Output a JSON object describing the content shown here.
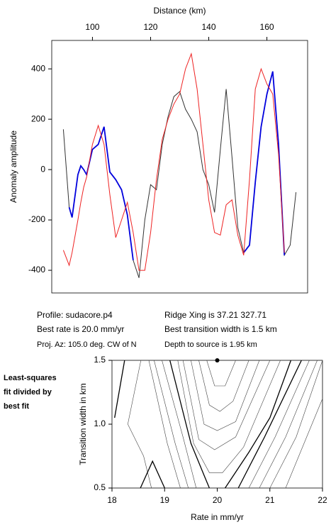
{
  "chart_data": [
    {
      "type": "line",
      "xlabel": "Distance (km)",
      "ylabel": "Anomaly amplitude",
      "xlim": [
        86,
        174
      ],
      "ylim": [
        -490,
        513
      ],
      "xticks": [
        100,
        120,
        140,
        160
      ],
      "yticks": [
        -400,
        -200,
        0,
        200,
        400
      ],
      "x": [
        90,
        92,
        93,
        95,
        96,
        97,
        98,
        100,
        102,
        104,
        106,
        108,
        110,
        112,
        114,
        116,
        118,
        120,
        122,
        124,
        126,
        128,
        130,
        132,
        134,
        136,
        138,
        140,
        142,
        144,
        146,
        148,
        150,
        152,
        154,
        156,
        158,
        160,
        162,
        164,
        166,
        168,
        170
      ],
      "series": [
        {
          "color": "#333333",
          "values": [
            160,
            -150,
            -190,
            -20,
            15,
            0,
            -20,
            80,
            100,
            170,
            -10,
            -40,
            -80,
            -180,
            -360,
            -430,
            -200,
            -60,
            -80,
            100,
            210,
            290,
            310,
            240,
            200,
            150,
            0,
            -60,
            -170,
            80,
            320,
            50,
            -230,
            -330,
            -300,
            -50,
            170,
            300,
            390,
            100,
            -340,
            -300,
            -90
          ]
        },
        {
          "color": "#0000dd",
          "values": [
            null,
            -150,
            -190,
            -20,
            15,
            0,
            -20,
            80,
            100,
            170,
            -10,
            -40,
            -80,
            -180,
            -360,
            null,
            null,
            null,
            null,
            null,
            null,
            null,
            null,
            null,
            null,
            null,
            null,
            null,
            null,
            null,
            null,
            null,
            null,
            -330,
            -300,
            -50,
            170,
            300,
            390,
            100,
            -340,
            null,
            null
          ]
        },
        {
          "color": "#ee2222",
          "values": [
            -320,
            -380,
            -330,
            -200,
            -130,
            -70,
            -30,
            100,
            175,
            100,
            -100,
            -270,
            -200,
            -130,
            -250,
            -400,
            -400,
            -250,
            -40,
            120,
            200,
            260,
            300,
            400,
            460,
            320,
            100,
            -120,
            -250,
            -260,
            -140,
            -120,
            -260,
            -340,
            -40,
            320,
            400,
            340,
            300,
            60,
            -330,
            null,
            null
          ]
        }
      ]
    },
    {
      "type": "contour",
      "xlabel": "Rate in mm/yr",
      "ylabel": "Transition width in km",
      "xlim": [
        18,
        22
      ],
      "ylim": [
        0.5,
        1.5
      ],
      "xticks": [
        18,
        19,
        20,
        21,
        22
      ],
      "yticks": [
        0.5,
        {
          "value": 1,
          "label": "1.0"
        },
        1.5
      ],
      "best": {
        "x": 20,
        "y": 1.5
      },
      "contours": [
        {
          "x": [
            19.8,
            19.95,
            20.15,
            20.35
          ],
          "y": [
            1.5,
            1.3,
            1.3,
            1.5
          ]
        },
        {
          "x": [
            19.65,
            19.85,
            20.05,
            20.3,
            20.6
          ],
          "y": [
            1.5,
            1.15,
            1.1,
            1.18,
            1.5
          ]
        },
        {
          "x": [
            19.5,
            19.75,
            20,
            20.35,
            20.8
          ],
          "y": [
            1.5,
            1,
            0.95,
            1.02,
            1.5
          ]
        },
        {
          "x": [
            19.35,
            19.65,
            19.95,
            20.35,
            21
          ],
          "y": [
            1.5,
            0.88,
            0.8,
            0.9,
            1.5
          ]
        },
        {
          "x": [
            19.25,
            19.55,
            19.85,
            20.1,
            20.5,
            21.2
          ],
          "y": [
            1.5,
            0.85,
            0.62,
            0.62,
            0.82,
            1.5
          ]
        },
        {
          "x": [
            19.1,
            19.5,
            19.75,
            19.85
          ],
          "y": [
            1.5,
            0.85,
            0.6,
            0.5
          ],
          "thick": true
        },
        {
          "x": [
            20.15,
            20.6,
            21,
            21.4
          ],
          "y": [
            0.5,
            0.78,
            1.05,
            1.5
          ],
          "thick": true
        },
        {
          "x": [
            18.95,
            19.35,
            19.6
          ],
          "y": [
            1.5,
            0.9,
            0.5
          ]
        },
        {
          "x": [
            18.8,
            19.2,
            19.45
          ],
          "y": [
            1.5,
            0.85,
            0.5
          ]
        },
        {
          "x": [
            18.7,
            19.05,
            19.3
          ],
          "y": [
            1.5,
            0.85,
            0.5
          ]
        },
        {
          "x": [
            18.55,
            18.3,
            18.6,
            18.75
          ],
          "y": [
            1.5,
            1,
            0.75,
            0.5
          ]
        },
        {
          "x": [
            18.24,
            18.05
          ],
          "y": [
            1.5,
            1.05
          ],
          "thick": true
        },
        {
          "x": [
            18.54,
            18.77,
            19
          ],
          "y": [
            0.5,
            0.71,
            0.5
          ],
          "thick": true
        },
        {
          "x": [
            20.4,
            20.9,
            21.6
          ],
          "y": [
            0.5,
            0.9,
            1.5
          ],
          "thick": true
        },
        {
          "x": [
            20.6,
            21.1,
            21.75
          ],
          "y": [
            0.5,
            0.9,
            1.5
          ]
        },
        {
          "x": [
            20.8,
            21.3,
            21.9
          ],
          "y": [
            0.5,
            0.9,
            1.5
          ]
        },
        {
          "x": [
            21,
            21.5,
            22
          ],
          "y": [
            0.5,
            0.9,
            1.5
          ]
        },
        {
          "x": [
            21.3,
            21.7,
            22
          ],
          "y": [
            0.5,
            0.9,
            1.2
          ]
        }
      ]
    }
  ],
  "info": {
    "left": [
      "Profile: sudacore.p4",
      "Best rate is 20.0 mm/yr",
      "Proj. Az: 105.0 deg. CW of N"
    ],
    "right": [
      "Ridge Xing is 37.21 327.71",
      "Best transition width is 1.5 km",
      "Depth to source is   1.95 km"
    ]
  },
  "caption": [
    "Least-squares",
    "fit divided by",
    "best fit"
  ]
}
